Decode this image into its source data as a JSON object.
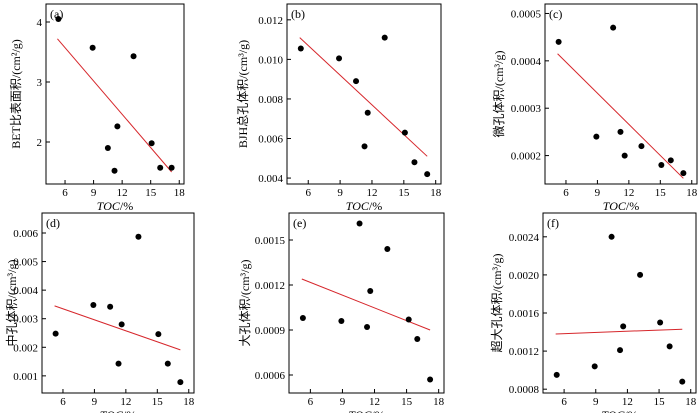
{
  "chart_data": [
    {
      "type": "scatter",
      "panel_label": "(a)",
      "xlabel_italic": "TOC",
      "xlabel_unit": "/%",
      "ylabel": "BET比表面积/(cm²/g)",
      "xlim": [
        4,
        18.5
      ],
      "ylim": [
        1.3,
        4.3
      ],
      "xticks": [
        6,
        9,
        12,
        15,
        18
      ],
      "yticks": [
        2,
        3,
        4
      ],
      "ytick_labels": [
        "2",
        "3",
        "4"
      ],
      "points": [
        [
          5.3,
          4.05
        ],
        [
          8.9,
          3.57
        ],
        [
          10.5,
          1.9
        ],
        [
          11.2,
          1.52
        ],
        [
          11.5,
          2.26
        ],
        [
          13.2,
          3.43
        ],
        [
          15.1,
          1.98
        ],
        [
          16.0,
          1.57
        ],
        [
          17.2,
          1.57
        ]
      ],
      "fit_line": [
        [
          5.2,
          3.72
        ],
        [
          17.2,
          1.5
        ]
      ]
    },
    {
      "type": "scatter",
      "panel_label": "(b)",
      "xlabel_italic": "TOC",
      "xlabel_unit": "/%",
      "ylabel": "BJH总孔体积/(cm³/g)",
      "xlim": [
        4,
        18.5
      ],
      "ylim": [
        0.0037,
        0.0128
      ],
      "xticks": [
        6,
        9,
        12,
        15,
        18
      ],
      "yticks": [
        0.004,
        0.006,
        0.008,
        0.01,
        0.012
      ],
      "ytick_labels": [
        "0.004",
        "0.006",
        "0.008",
        "0.010",
        "0.012"
      ],
      "points": [
        [
          5.3,
          0.01055
        ],
        [
          8.9,
          0.01005
        ],
        [
          10.5,
          0.0089
        ],
        [
          11.3,
          0.0056
        ],
        [
          11.6,
          0.0073
        ],
        [
          13.2,
          0.0111
        ],
        [
          15.1,
          0.0063
        ],
        [
          16.0,
          0.0048
        ],
        [
          17.2,
          0.0042
        ]
      ],
      "fit_line": [
        [
          5.2,
          0.0111
        ],
        [
          17.2,
          0.0051
        ]
      ]
    },
    {
      "type": "scatter",
      "panel_label": "(c)",
      "xlabel_italic": "TOC",
      "xlabel_unit": "/%",
      "ylabel": "微孔体积/(cm³/g)",
      "xlim": [
        4,
        18.5
      ],
      "ylim": [
        0.00014,
        0.00052
      ],
      "xticks": [
        6,
        9,
        12,
        15,
        18
      ],
      "yticks": [
        0.0002,
        0.0003,
        0.0004,
        0.0005
      ],
      "ytick_labels": [
        "0.0002",
        "0.0003",
        "0.0004",
        "0.0005"
      ],
      "points": [
        [
          5.3,
          0.00044
        ],
        [
          8.9,
          0.00024
        ],
        [
          10.5,
          0.00047
        ],
        [
          11.2,
          0.00025
        ],
        [
          11.6,
          0.0002
        ],
        [
          13.2,
          0.00022
        ],
        [
          15.1,
          0.00018
        ],
        [
          16.0,
          0.00019
        ],
        [
          17.2,
          0.000163
        ]
      ],
      "fit_line": [
        [
          5.2,
          0.000415
        ],
        [
          17.2,
          0.000152
        ]
      ]
    },
    {
      "type": "scatter",
      "panel_label": "(d)",
      "xlabel_italic": "TOC",
      "xlabel_unit": "/%",
      "ylabel": "中孔体积/(cm³/g)",
      "xlim": [
        4,
        18.5
      ],
      "ylim": [
        0.0004,
        0.0067
      ],
      "xticks": [
        6,
        9,
        12,
        15,
        18
      ],
      "yticks": [
        0.001,
        0.002,
        0.003,
        0.004,
        0.005,
        0.006
      ],
      "ytick_labels": [
        "0.001",
        "0.002",
        "0.003",
        "0.004",
        "0.005",
        "0.006"
      ],
      "points": [
        [
          5.3,
          0.00248
        ],
        [
          8.9,
          0.00348
        ],
        [
          10.5,
          0.00342
        ],
        [
          11.3,
          0.00143
        ],
        [
          11.6,
          0.0028
        ],
        [
          13.2,
          0.00587
        ],
        [
          15.1,
          0.00246
        ],
        [
          16.0,
          0.00143
        ],
        [
          17.2,
          0.00078
        ]
      ],
      "fit_line": [
        [
          5.2,
          0.00345
        ],
        [
          17.2,
          0.00191
        ]
      ]
    },
    {
      "type": "scatter",
      "panel_label": "(e)",
      "xlabel_italic": "TOC",
      "xlabel_unit": "/%",
      "ylabel": "大孔体积/(cm³/g)",
      "xlim": [
        4,
        18.5
      ],
      "ylim": [
        0.00048,
        0.00168
      ],
      "xticks": [
        6,
        9,
        12,
        15,
        18
      ],
      "yticks": [
        0.0006,
        0.0009,
        0.0012,
        0.0015
      ],
      "ytick_labels": [
        "0.0006",
        "0.0009",
        "0.0012",
        "0.0015"
      ],
      "points": [
        [
          5.3,
          0.00098
        ],
        [
          8.9,
          0.00096
        ],
        [
          10.6,
          0.00161
        ],
        [
          11.3,
          0.00092
        ],
        [
          11.6,
          0.00116
        ],
        [
          13.2,
          0.00144
        ],
        [
          15.2,
          0.00097
        ],
        [
          16.0,
          0.00084
        ],
        [
          17.2,
          0.00057
        ]
      ],
      "fit_line": [
        [
          5.2,
          0.00124
        ],
        [
          17.2,
          0.0009
        ]
      ]
    },
    {
      "type": "scatter",
      "panel_label": "(f)",
      "xlabel_italic": "TOC",
      "xlabel_unit": "/%",
      "ylabel": "超大孔体积/(cm³/g)",
      "xlim": [
        4,
        18.5
      ],
      "ylim": [
        0.00076,
        0.00265
      ],
      "xticks": [
        6,
        9,
        12,
        15,
        18
      ],
      "yticks": [
        0.0008,
        0.0012,
        0.0016,
        0.002,
        0.0024
      ],
      "ytick_labels": [
        "0.0008",
        "0.0012",
        "0.0016",
        "0.0020",
        "0.0024"
      ],
      "points": [
        [
          5.3,
          0.00095
        ],
        [
          8.9,
          0.00104
        ],
        [
          10.5,
          0.0024
        ],
        [
          11.3,
          0.00121
        ],
        [
          11.6,
          0.00146
        ],
        [
          13.2,
          0.002
        ],
        [
          15.1,
          0.0015
        ],
        [
          16.0,
          0.00125
        ],
        [
          17.2,
          0.00088
        ]
      ],
      "fit_line": [
        [
          5.2,
          0.00138
        ],
        [
          17.2,
          0.00143
        ]
      ]
    }
  ],
  "colors": {
    "points": "#000000",
    "fit_line": "#d6262b",
    "axes": "#000000"
  }
}
